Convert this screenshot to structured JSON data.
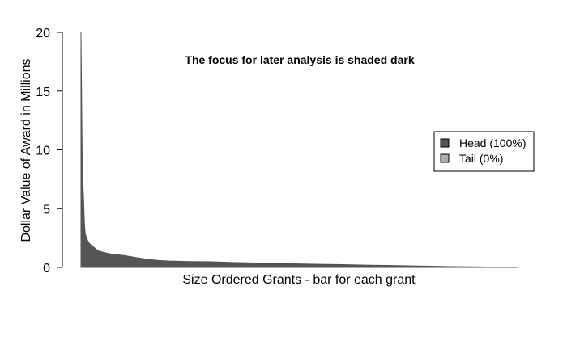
{
  "chart_data": {
    "type": "area",
    "title": "",
    "annotation": "The focus for later analysis is shaded dark",
    "xlabel": "Size Ordered Grants - bar for each grant",
    "ylabel": "Dollar Value of Award in Millions",
    "ylim": [
      0,
      20
    ],
    "y_ticks": [
      0,
      5,
      10,
      15,
      20
    ],
    "y_tick_labels": [
      "0",
      "5",
      "10",
      "15",
      "20"
    ],
    "grid": false,
    "legend_position": "right",
    "series": [
      {
        "name": "Head (100%)",
        "color": "#555555",
        "x": [
          0.0,
          0.003,
          0.006,
          0.008,
          0.01,
          0.015,
          0.02,
          0.03,
          0.04,
          0.05,
          0.06,
          0.075,
          0.09,
          0.1,
          0.125,
          0.15,
          0.175,
          0.2,
          0.25,
          0.3,
          0.35,
          0.4,
          0.45,
          0.5,
          0.55,
          0.6,
          0.65,
          0.7,
          0.75,
          0.8,
          0.85,
          0.9,
          0.95,
          1.0
        ],
        "values": [
          20.0,
          8.4,
          5.8,
          3.6,
          2.8,
          2.3,
          2.0,
          1.7,
          1.4,
          1.3,
          1.2,
          1.1,
          1.05,
          1.0,
          0.85,
          0.7,
          0.6,
          0.55,
          0.5,
          0.48,
          0.42,
          0.38,
          0.33,
          0.3,
          0.27,
          0.24,
          0.2,
          0.17,
          0.14,
          0.1,
          0.07,
          0.05,
          0.03,
          0.01
        ]
      },
      {
        "name": "Tail (0%)",
        "color": "#aaaaaa",
        "x": [],
        "values": []
      }
    ]
  }
}
